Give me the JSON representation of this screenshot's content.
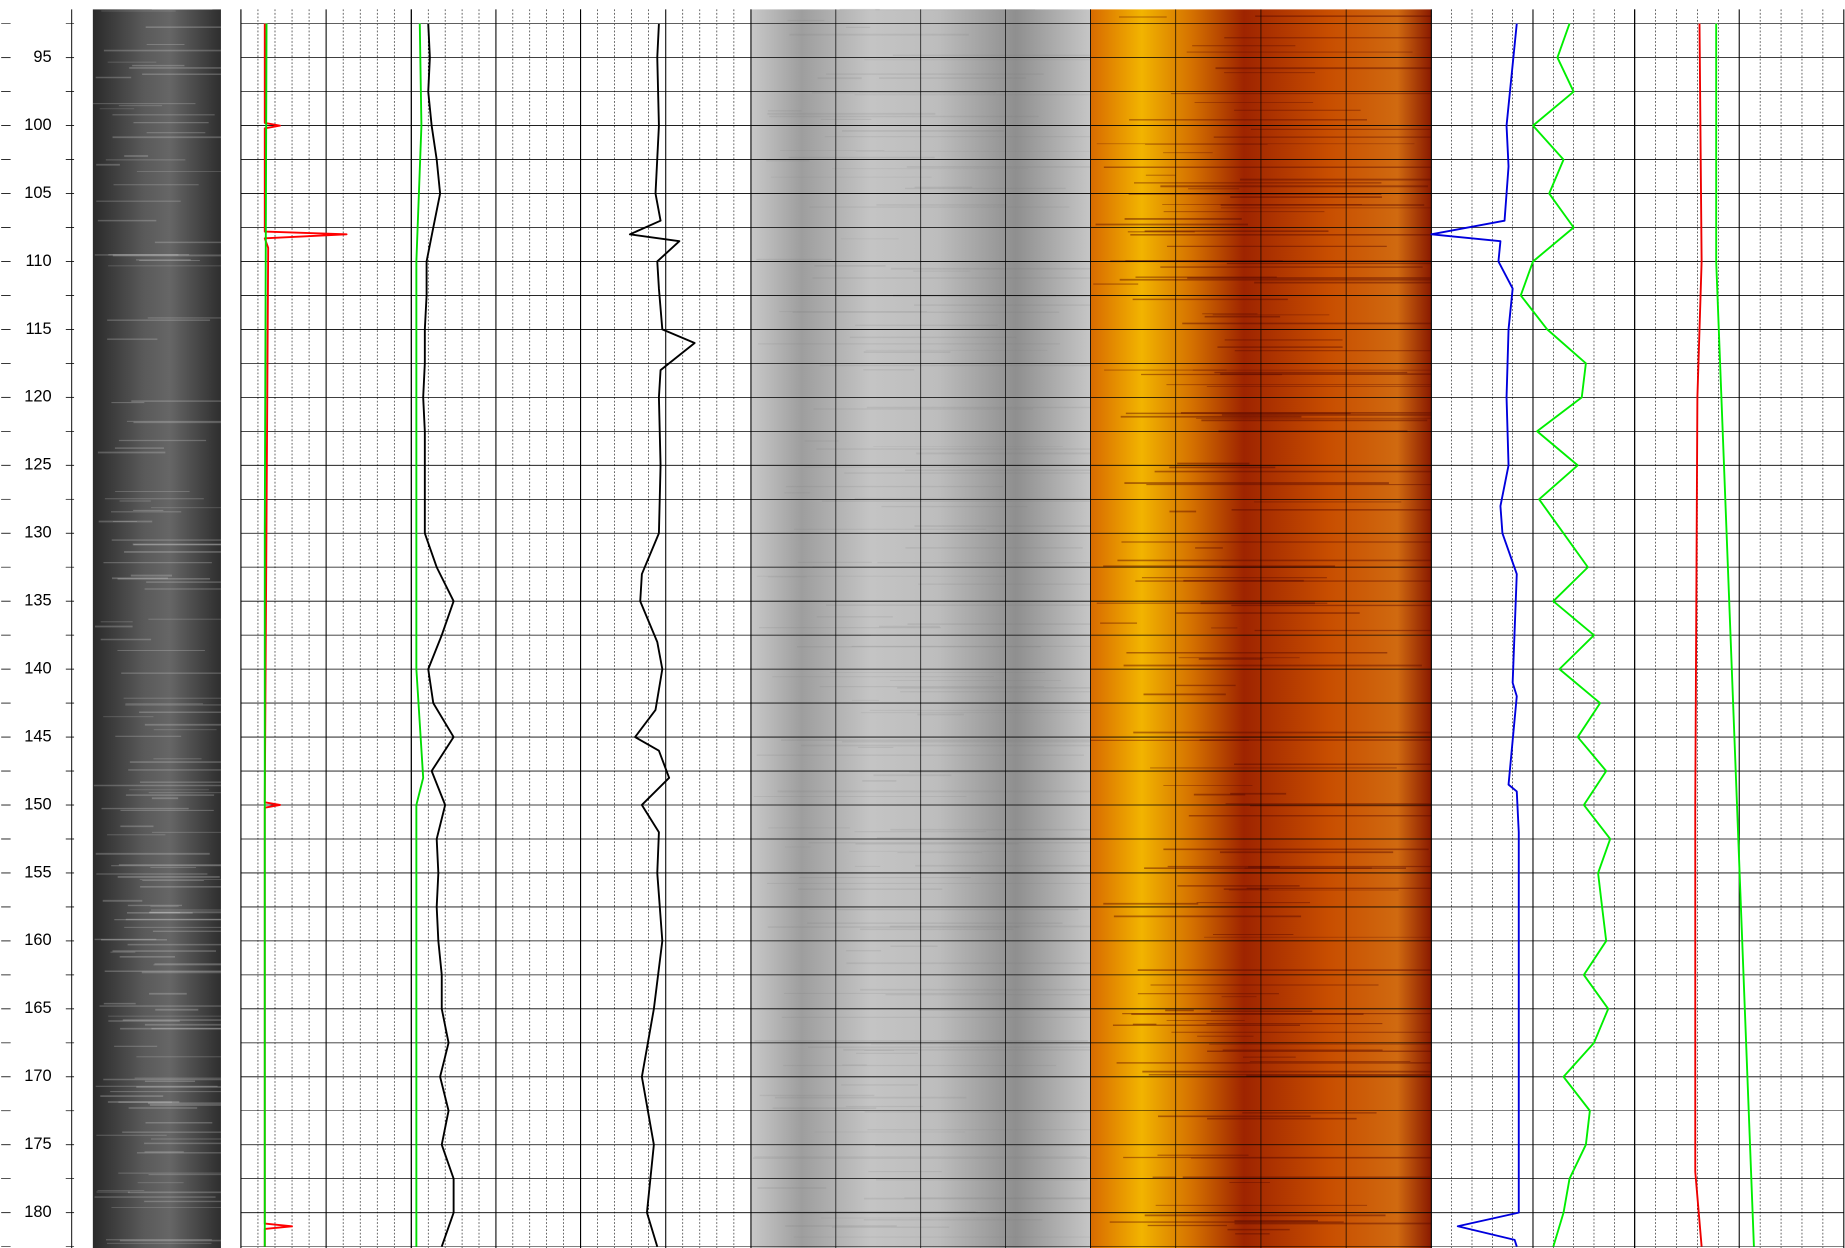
{
  "chart_data": {
    "type": "well-log",
    "ylim": [
      91.45,
      182.6
    ],
    "yticks": [
      95,
      100,
      105,
      110,
      115,
      120,
      125,
      130,
      135,
      140,
      145,
      150,
      155,
      160,
      165,
      170,
      175,
      180
    ],
    "grid": true,
    "tracks": [
      {
        "xlim": [
          0,
          10
        ],
        "series": [
          {
            "color": "#ff0000",
            "depths": [
              92.5,
              99.8,
              100,
              100.2,
              107.8,
              108,
              108.3,
              109,
              149.8,
              150,
              150.2,
              180.8,
              181,
              181.2,
              182.5
            ],
            "values": [
              1.4,
              1.4,
              2.3,
              1.4,
              1.4,
              6.2,
              1.4,
              1.6,
              1.4,
              2.3,
              1.4,
              1.4,
              3.0,
              1.4,
              1.4
            ]
          },
          {
            "color": "#00dd00",
            "depths": [
              92.5,
              130,
              182.5
            ],
            "values": [
              1.5,
              1.4,
              1.4
            ]
          }
        ]
      },
      {
        "xlim": [
          0,
          10
        ],
        "series": [
          {
            "color": "#00dd00",
            "depths": [
              92.5,
              100,
              110,
              120,
              130,
              140,
              148,
              150,
              160,
              170,
              182.5
            ],
            "values": [
              0.5,
              0.6,
              0.3,
              0.3,
              0.3,
              0.3,
              0.7,
              0.3,
              0.3,
              0.3,
              0.3
            ]
          },
          {
            "color": "#000000",
            "depths": [
              92.5,
              95,
              97.5,
              100,
              102.5,
              105,
              107.5,
              110,
              112.5,
              115,
              117.5,
              120,
              122.5,
              125,
              127.5,
              130,
              132.5,
              135,
              137.5,
              140,
              142.5,
              145,
              147.5,
              150,
              152.5,
              155,
              157.5,
              160,
              162.5,
              165,
              167.5,
              170,
              172.5,
              175,
              177.5,
              180,
              182.5
            ],
            "values": [
              1.0,
              1.1,
              1.0,
              1.2,
              1.5,
              1.7,
              1.3,
              0.9,
              0.9,
              0.8,
              0.8,
              0.7,
              0.8,
              0.8,
              0.8,
              0.8,
              1.5,
              2.5,
              1.8,
              1.0,
              1.3,
              2.5,
              1.2,
              2.0,
              1.5,
              1.6,
              1.5,
              1.6,
              1.8,
              1.8,
              2.2,
              1.7,
              2.2,
              1.8,
              2.5,
              2.5,
              1.8
            ]
          }
        ]
      },
      {
        "xlim": [
          0,
          10
        ],
        "series": [
          {
            "color": "#000000",
            "depths": [
              92.5,
              95,
              100,
              105,
              107,
              108,
              108.5,
              110,
              112,
              115,
              116,
              118,
              120,
              125,
              130,
              133,
              135,
              138,
              140,
              143,
              145,
              146,
              148,
              150,
              152,
              155,
              160,
              165,
              170,
              175,
              180,
              182.5
            ],
            "values": [
              4.6,
              4.5,
              4.6,
              4.4,
              4.7,
              2.9,
              5.8,
              4.5,
              4.6,
              4.8,
              6.7,
              4.7,
              4.6,
              4.7,
              4.6,
              3.6,
              3.5,
              4.5,
              4.8,
              4.4,
              3.2,
              4.6,
              5.2,
              3.6,
              4.6,
              4.5,
              4.8,
              4.3,
              3.6,
              4.3,
              3.9,
              4.5
            ]
          }
        ]
      },
      {
        "xlim": [
          0,
          10
        ],
        "series": [
          {
            "color": "#0000dd",
            "depths": [
              92.5,
              100,
              103,
              107,
              108,
              108.5,
              110,
              112,
              115,
              120,
              125,
              128,
              130,
              133,
              141,
              142,
              148.5,
              149,
              152,
              180,
              181,
              182,
              182.5
            ],
            "values": [
              4.2,
              3.7,
              3.8,
              3.6,
              0,
              3.4,
              3.3,
              4.0,
              3.8,
              3.7,
              3.8,
              3.4,
              3.5,
              4.2,
              4.0,
              4.2,
              3.8,
              4.2,
              4.3,
              4.3,
              1.3,
              4.1,
              4.2
            ]
          },
          {
            "color": "#00ee00",
            "depths": [
              92.5,
              95,
              97.5,
              100,
              102.5,
              105,
              107.5,
              110,
              112.5,
              115,
              117.5,
              120,
              122.5,
              125,
              127.5,
              130,
              132.5,
              135,
              137.5,
              140,
              142.5,
              145,
              147.5,
              150,
              152.5,
              155,
              157.5,
              160,
              162.5,
              165,
              167.5,
              170,
              172.5,
              175,
              177.5,
              180,
              182.5
            ],
            "values": [
              6.8,
              6.2,
              7.0,
              5.0,
              6.5,
              5.8,
              7.0,
              5.0,
              4.4,
              5.7,
              7.6,
              7.4,
              5.2,
              7.2,
              5.3,
              6.5,
              7.7,
              6.0,
              8.0,
              6.3,
              8.3,
              7.2,
              8.6,
              7.5,
              8.8,
              8.2,
              8.4,
              8.6,
              7.5,
              8.7,
              8.0,
              6.5,
              7.8,
              7.6,
              6.8,
              6.5,
              6.0
            ]
          }
        ]
      },
      {
        "xlim": [
          0,
          10
        ],
        "series": [
          {
            "color": "#ee0000",
            "depths": [
              92.5,
              110,
              120,
              150,
              175,
              177,
              182.5
            ],
            "values": [
              3.1,
              3.2,
              3.0,
              2.9,
              2.9,
              2.9,
              3.2
            ]
          },
          {
            "color": "#00ee00",
            "depths": [
              92.5,
              107,
              110,
              182.5
            ],
            "values": [
              3.9,
              3.9,
              3.9,
              5.7
            ]
          }
        ]
      }
    ]
  }
}
